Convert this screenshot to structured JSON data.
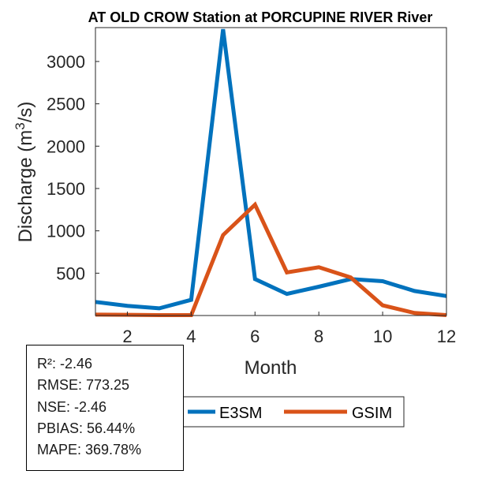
{
  "chart_data": {
    "type": "line",
    "title": "AT OLD CROW  Station at  PORCUPINE RIVER  River",
    "xlabel": "Month",
    "ylabel": "Discharge (m",
    "ylabel_superscript": "3",
    "ylabel_suffix": "/s)",
    "xlim": [
      1,
      12
    ],
    "ylim": [
      0,
      3400
    ],
    "xticks": [
      2,
      4,
      6,
      8,
      10,
      12
    ],
    "yticks": [
      500,
      1000,
      1500,
      2000,
      2500,
      3000
    ],
    "x": [
      1,
      2,
      3,
      4,
      5,
      6,
      7,
      8,
      9,
      10,
      11,
      12
    ],
    "series": [
      {
        "name": "E3SM",
        "color": "#0072BD",
        "values": [
          160,
          115,
          85,
          185,
          3380,
          430,
          255,
          340,
          430,
          405,
          290,
          230
        ]
      },
      {
        "name": "GSIM",
        "color": "#D95319",
        "values": [
          10,
          8,
          5,
          5,
          950,
          1310,
          510,
          570,
          450,
          120,
          30,
          5
        ]
      }
    ],
    "legend_location": "bottom-right outside"
  },
  "stats": [
    "R²: -2.46",
    "RMSE: 773.25",
    "NSE: -2.46",
    "PBIAS: 56.44%",
    "MAPE: 369.78%"
  ]
}
